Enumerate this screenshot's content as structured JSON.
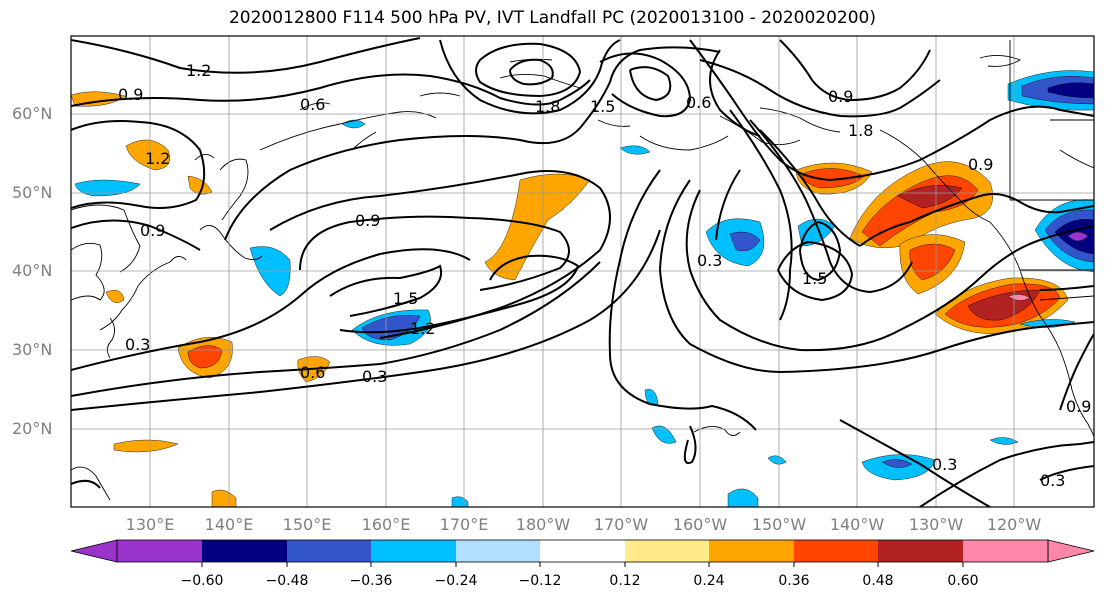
{
  "title": "2020012800 F114 500 hPa PV, IVT Landfall PC (2020013100 - 2020020200)",
  "lat_labels": [
    "60°N",
    "50°N",
    "40°N",
    "30°N",
    "20°N"
  ],
  "lon_labels": [
    "130°E",
    "140°E",
    "150°E",
    "160°E",
    "170°E",
    "180°W",
    "170°W",
    "160°W",
    "150°W",
    "140°W",
    "130°W",
    "120°W"
  ],
  "colorbar": {
    "ticks": [
      "−0.60",
      "−0.48",
      "−0.36",
      "−0.24",
      "−0.12",
      "0.12",
      "0.24",
      "0.36",
      "0.48",
      "0.60"
    ],
    "colors": [
      "#9933cc",
      "#000080",
      "#3355cc",
      "#00bfff",
      "#b0e0ff",
      "#ffffff",
      "#ffeb8a",
      "#ffa500",
      "#ff4500",
      "#b22222",
      "#ff88aa"
    ]
  },
  "contour_labels": [
    "1.2",
    "0.9",
    "0.6",
    "1.2",
    "0.9",
    "0.9",
    "0.3",
    "1.5",
    "1.2",
    "0.6",
    "0.3",
    "1.8",
    "1.5",
    "0.6",
    "1.8",
    "0.9",
    "0.3",
    "1.5",
    "0.9",
    "0.3",
    "0.3",
    "0.9"
  ]
}
